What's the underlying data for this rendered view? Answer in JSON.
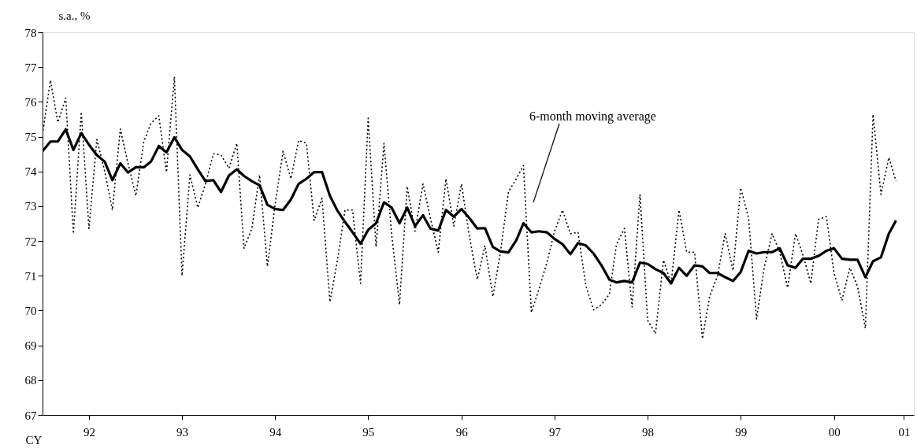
{
  "chart_data": {
    "type": "line",
    "xlabel": "CY",
    "ylabel": "s.a., %",
    "x": [
      "1992-01",
      "1992-02",
      "1992-03",
      "1992-04",
      "1992-05",
      "1992-06",
      "1992-07",
      "1992-08",
      "1992-09",
      "1992-10",
      "1992-11",
      "1992-12",
      "1993-01",
      "1993-02",
      "1993-03",
      "1993-04",
      "1993-05",
      "1993-06",
      "1993-07",
      "1993-08",
      "1993-09",
      "1993-10",
      "1993-11",
      "1993-12",
      "1994-01",
      "1994-02",
      "1994-03",
      "1994-04",
      "1994-05",
      "1994-06",
      "1994-07",
      "1994-08",
      "1994-09",
      "1994-10",
      "1994-11",
      "1994-12",
      "1995-01",
      "1995-02",
      "1995-03",
      "1995-04",
      "1995-05",
      "1995-06",
      "1995-07",
      "1995-08",
      "1995-09",
      "1995-10",
      "1995-11",
      "1995-12",
      "1996-01",
      "1996-02",
      "1996-03",
      "1996-04",
      "1996-05",
      "1996-06",
      "1996-07",
      "1996-08",
      "1996-09",
      "1996-10",
      "1996-11",
      "1996-12",
      "1997-01",
      "1997-02",
      "1997-03",
      "1997-04",
      "1997-05",
      "1997-06",
      "1997-07",
      "1997-08",
      "1997-09",
      "1997-10",
      "1997-11",
      "1997-12",
      "1998-01",
      "1998-02",
      "1998-03",
      "1998-04",
      "1998-05",
      "1998-06",
      "1998-07",
      "1998-08",
      "1998-09",
      "1998-10",
      "1998-11",
      "1998-12",
      "1999-01",
      "1999-02",
      "1999-03",
      "1999-04",
      "1999-05",
      "1999-06",
      "1999-07",
      "1999-08",
      "1999-09",
      "1999-10",
      "1999-11",
      "1999-12",
      "2000-01",
      "2000-02",
      "2000-03",
      "2000-04",
      "2000-05",
      "2000-06",
      "2000-07",
      "2000-08",
      "2000-09",
      "2000-10",
      "2000-11",
      "2000-12",
      "2001-01",
      "2001-02",
      "2001-03"
    ],
    "series": [
      {
        "color": "#000000",
        "line_style": "dotted",
        "values": [
          75.07,
          76.62,
          75.41,
          76.11,
          72.21,
          75.71,
          72.36,
          74.92,
          74.0,
          72.89,
          75.22,
          74.24,
          73.3,
          74.85,
          75.38,
          75.6,
          73.98,
          76.72,
          71.0,
          73.9,
          72.96,
          73.64,
          74.51,
          74.47,
          74.09,
          74.81,
          71.79,
          72.36,
          73.9,
          71.27,
          73.04,
          74.58,
          73.79,
          74.89,
          74.81,
          72.59,
          73.23,
          70.25,
          71.38,
          72.89,
          72.89,
          70.78,
          75.53,
          71.83,
          74.81,
          72.2,
          70.17,
          73.57,
          72.28,
          73.64,
          72.66,
          71.68,
          73.79,
          72.43,
          73.64,
          72.13,
          70.89,
          71.87,
          70.4,
          71.68,
          73.41,
          73.79,
          74.17,
          69.95,
          70.62,
          71.38,
          72.28,
          72.89,
          72.21,
          72.25,
          70.7,
          70.02,
          70.17,
          70.47,
          71.91,
          72.36,
          70.1,
          73.34,
          69.72,
          69.34,
          71.45,
          70.78,
          72.89,
          71.68,
          71.68,
          69.19,
          70.4,
          71.0,
          72.21,
          71.15,
          73.53,
          72.66,
          69.76,
          71.23,
          72.21,
          71.68,
          70.66,
          72.21,
          71.6,
          70.78,
          72.62,
          72.7,
          71.08,
          70.29,
          71.23,
          70.7,
          69.49,
          75.64,
          73.34,
          74.4,
          73.72
        ]
      },
      {
        "color": "#000000",
        "line_style": "solid",
        "values": [
          74.58,
          74.86,
          74.86,
          75.21,
          74.62,
          75.1,
          74.77,
          74.47,
          74.28,
          73.75,
          74.23,
          73.97,
          74.12,
          74.12,
          74.28,
          74.73,
          74.55,
          74.98,
          74.62,
          74.43,
          74.06,
          73.72,
          73.75,
          73.41,
          73.88,
          74.06,
          73.87,
          73.72,
          73.6,
          73.04,
          72.92,
          72.89,
          73.19,
          73.64,
          73.79,
          73.98,
          73.98,
          73.3,
          72.89,
          72.55,
          72.25,
          71.92,
          72.32,
          72.51,
          73.11,
          72.96,
          72.51,
          72.96,
          72.43,
          72.74,
          72.36,
          72.3,
          72.89,
          72.7,
          72.92,
          72.66,
          72.36,
          72.37,
          71.83,
          71.7,
          71.67,
          72.02,
          72.51,
          72.25,
          72.28,
          72.25,
          72.06,
          71.91,
          71.62,
          71.94,
          71.87,
          71.64,
          71.3,
          70.89,
          70.81,
          70.85,
          70.81,
          71.38,
          71.34,
          71.19,
          71.08,
          70.78,
          71.23,
          71.0,
          71.3,
          71.27,
          71.08,
          71.08,
          70.96,
          70.85,
          71.11,
          71.72,
          71.64,
          71.68,
          71.68,
          71.79,
          71.3,
          71.23,
          71.49,
          71.49,
          71.57,
          71.72,
          71.79,
          71.49,
          71.46,
          71.46,
          70.96,
          71.42,
          71.53,
          72.21,
          72.59
        ]
      }
    ],
    "annotations": [
      "6-month moving average"
    ],
    "xlim": [
      "1992-01",
      "2001-05-10"
    ],
    "xticks": [
      {
        "value": "1992-07",
        "label": "92"
      },
      {
        "value": "1993-07",
        "label": "93"
      },
      {
        "value": "1994-07",
        "label": "94"
      },
      {
        "value": "1995-07",
        "label": "95"
      },
      {
        "value": "1996-07",
        "label": "96"
      },
      {
        "value": "1997-07",
        "label": "97"
      },
      {
        "value": "1998-07",
        "label": "98"
      },
      {
        "value": "1999-07",
        "label": "99"
      },
      {
        "value": "2000-07",
        "label": "00"
      },
      {
        "value": "2001-04",
        "label": "01"
      }
    ],
    "ylim": [
      67,
      78
    ],
    "yticks": [
      67,
      68,
      69,
      70,
      71,
      72,
      73,
      74,
      75,
      76,
      77,
      78
    ],
    "grid": false
  }
}
